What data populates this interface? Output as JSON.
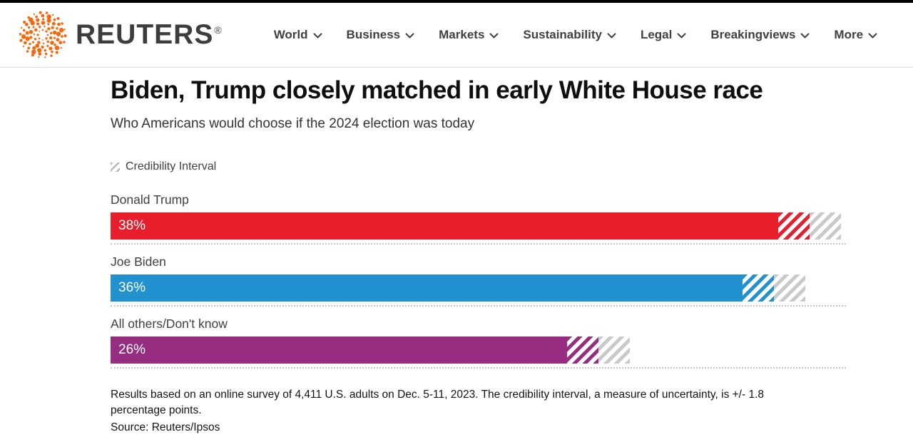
{
  "header": {
    "brand": "REUTERS",
    "reg_mark": "®",
    "nav": [
      {
        "label": "World"
      },
      {
        "label": "Business"
      },
      {
        "label": "Markets"
      },
      {
        "label": "Sustainability"
      },
      {
        "label": "Legal"
      },
      {
        "label": "Breakingviews"
      },
      {
        "label": "More"
      }
    ]
  },
  "article": {
    "title": "Biden, Trump closely matched in early White House race",
    "subtitle": "Who Americans would choose if the 2024 election was today"
  },
  "legend": {
    "label": "Credibility Interval"
  },
  "chart_data": {
    "type": "bar",
    "orientation": "horizontal",
    "title": "Biden, Trump closely matched in early White House race",
    "subtitle": "Who Americans would choose if the 2024 election was today",
    "categories": [
      "Donald Trump",
      "Joe Biden",
      "All others/Don't know"
    ],
    "values": [
      38,
      36,
      26
    ],
    "value_labels": [
      "38%",
      "36%",
      "26%"
    ],
    "bar_colors": [
      "#e81e2d",
      "#2291d0",
      "#962d80"
    ],
    "credibility_interval_pts": 1.8,
    "legend": "Credibility Interval",
    "xlim": [
      0,
      41.9
    ],
    "axis_visible": false,
    "grid": false,
    "note": "Results based on an online survey of 4,411 U.S. adults on Dec. 5-11, 2023. The credibility interval, a measure of uncertainty, is +/- 1.8 percentage points.",
    "source": "Source: Reuters/Ipsos"
  },
  "colors": {
    "logo_orange": "#f7680d",
    "text_charcoal": "#3d3d3d",
    "hatch_gray": "#c9c9c9",
    "topbar_black": "#000000"
  }
}
